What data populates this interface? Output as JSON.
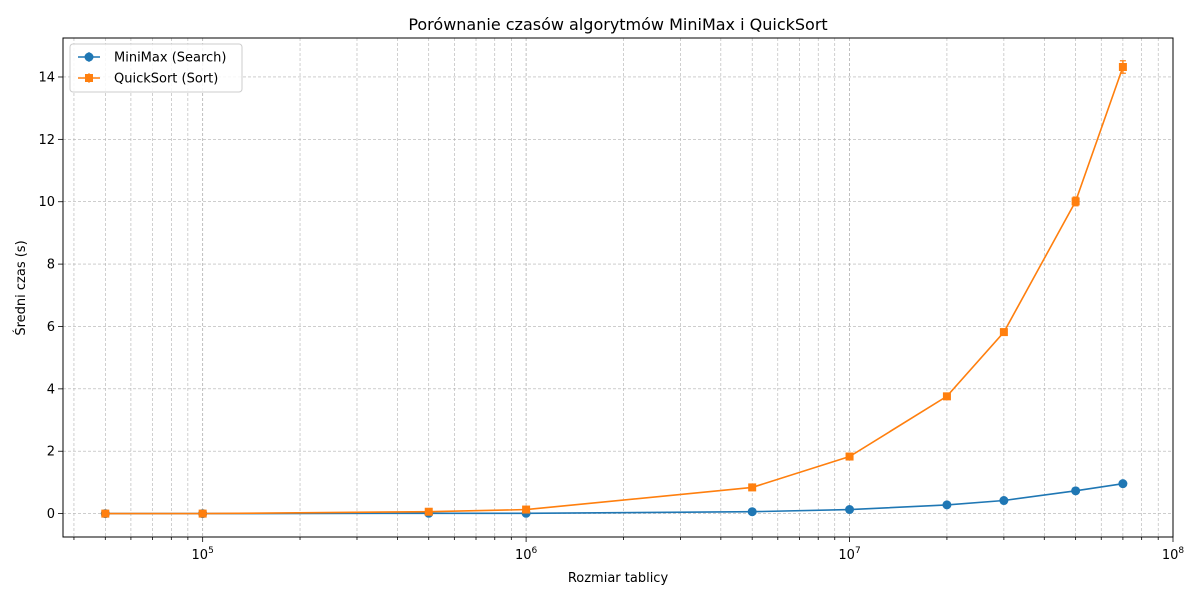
{
  "chart_data": {
    "type": "line",
    "title": "Porównanie czasów algorytmów MiniMax i QuickSort",
    "xlabel": "Rozmiar tablicy",
    "ylabel": "Średni czas (s)",
    "x_scale": "log",
    "xlim": [
      37000,
      100000000
    ],
    "ylim": [
      -0.75,
      15.25
    ],
    "grid": true,
    "legend_position": "top-left",
    "x_ticks": [
      {
        "value": 100000,
        "base": "10",
        "exp": "5"
      },
      {
        "value": 1000000,
        "base": "10",
        "exp": "6"
      },
      {
        "value": 10000000,
        "base": "10",
        "exp": "7"
      },
      {
        "value": 100000000,
        "base": "10",
        "exp": "8"
      }
    ],
    "y_ticks": [
      0,
      2,
      4,
      6,
      8,
      10,
      12,
      14
    ],
    "series": [
      {
        "name": "MiniMax (Search)",
        "color": "#1f77b4",
        "marker": "circle",
        "x": [
          50000,
          100000,
          500000,
          1000000,
          5000000,
          10000000,
          20000000,
          30000000,
          50000000,
          70000000
        ],
        "y": [
          0.0,
          0.0,
          0.01,
          0.01,
          0.06,
          0.13,
          0.28,
          0.42,
          0.73,
          0.96
        ]
      },
      {
        "name": "QuickSort (Sort)",
        "color": "#ff7f0e",
        "marker": "square",
        "x": [
          50000,
          100000,
          500000,
          1000000,
          5000000,
          10000000,
          20000000,
          30000000,
          50000000,
          70000000
        ],
        "y": [
          0.0,
          0.0,
          0.06,
          0.13,
          0.84,
          1.83,
          3.76,
          5.82,
          10.01,
          14.32
        ],
        "yerr": [
          0.0,
          0.0,
          0.01,
          0.02,
          0.03,
          0.05,
          0.07,
          0.08,
          0.14,
          0.2
        ]
      }
    ]
  }
}
